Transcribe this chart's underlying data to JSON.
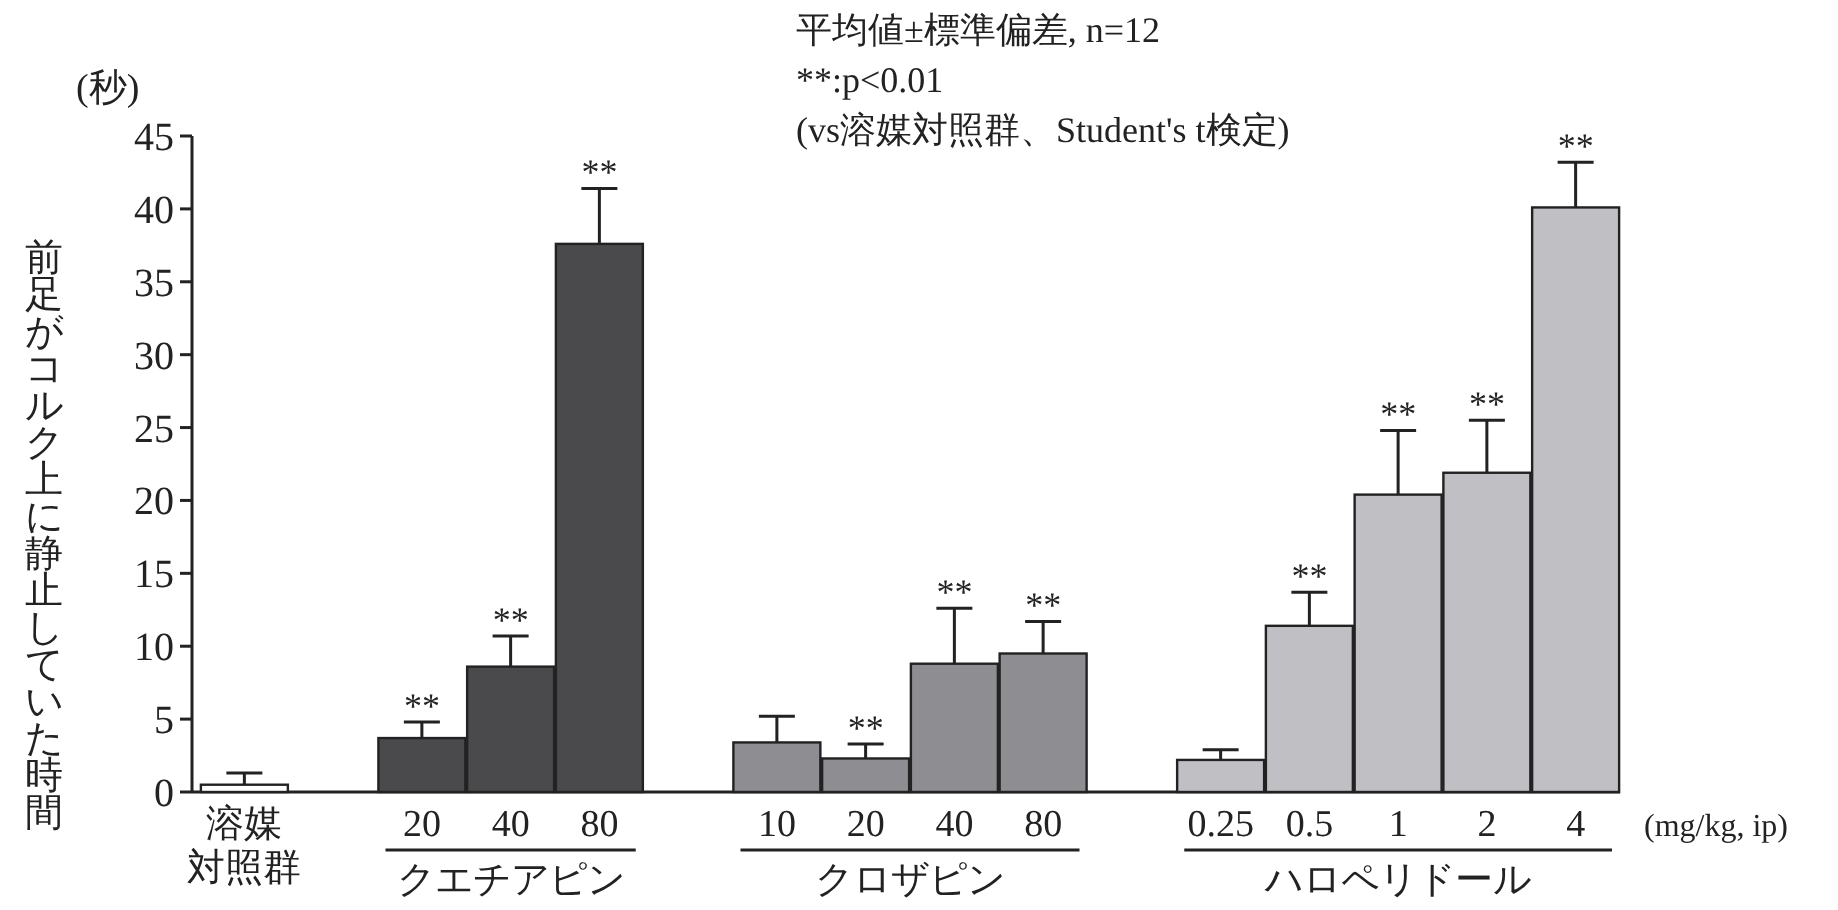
{
  "chart_data": {
    "type": "bar",
    "subtitle": "平均値±標準偏差, n=12\n**:p<0.01\n(vs溶媒対照群、Student's t検定)",
    "ylabel": "前足がコルク上に静止していた時間",
    "xlabel": "(mg/kg, ip)",
    "categories": [
      "溶媒対照群",
      null,
      "20",
      "40",
      "80",
      null,
      "10",
      "20",
      "40",
      "80",
      null,
      "0.25",
      "0.5",
      "1",
      "2",
      "4"
    ],
    "values": [
      0.5,
      null,
      3.7,
      8.6,
      37.6,
      null,
      3.4,
      2.3,
      8.8,
      9.5,
      null,
      2.2,
      11.4,
      20.4,
      21.9,
      40.1
    ],
    "errors": [
      0.8,
      null,
      1.1,
      2.1,
      3.8,
      null,
      1.8,
      1.0,
      3.8,
      2.2,
      null,
      0.7,
      2.3,
      4.4,
      3.6,
      3.1
    ],
    "value_labels": [
      null,
      null,
      "**",
      "**",
      "**",
      null,
      null,
      "**",
      "**",
      "**",
      null,
      null,
      "**",
      "**",
      "**",
      "**"
    ],
    "colors": [
      "#ffffff",
      null,
      "#4a4a4c",
      "#4a4a4c",
      "#4a4a4c",
      null,
      "#8e8e92",
      "#8e8e92",
      "#8e8e92",
      "#8e8e92",
      null,
      "#c0c0c4",
      "#c0c0c4",
      "#c0c0c4",
      "#c0c0c4",
      "#c0c0c4"
    ],
    "annotations": [
      "(秒)",
      "クエチアピン",
      "クロザピン",
      "ハロペリドール"
    ],
    "ylim": [
      0,
      45
    ],
    "yticks": [
      0,
      5,
      10,
      15,
      20,
      25,
      30,
      35,
      40,
      45
    ],
    "grid": false
  }
}
